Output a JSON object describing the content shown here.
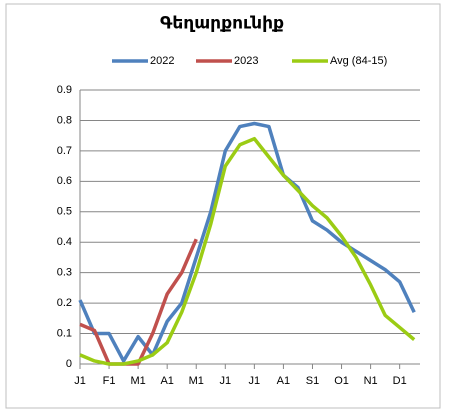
{
  "chart_data": {
    "type": "line",
    "title": "Գեղարքունիք",
    "x": [
      0,
      0.5,
      1,
      1.5,
      2,
      2.5,
      3,
      3.5,
      4,
      4.5,
      5,
      5.5,
      6,
      6.5,
      7,
      7.5,
      8,
      8.5,
      9,
      9.5,
      10,
      10.5,
      11,
      11.5
    ],
    "series": [
      {
        "name": "2022",
        "color": "#4f81bd",
        "values": [
          0.21,
          0.1,
          0.1,
          0.01,
          0.09,
          0.03,
          0.14,
          0.2,
          0.35,
          0.5,
          0.7,
          0.78,
          0.79,
          0.78,
          0.62,
          0.58,
          0.47,
          0.44,
          0.4,
          0.37,
          0.34,
          0.31,
          0.27,
          0.17
        ]
      },
      {
        "name": "2023",
        "color": "#c0504d",
        "values": [
          0.13,
          0.11,
          0.0,
          0.0,
          0.0,
          0.1,
          0.23,
          0.3,
          0.41,
          null,
          null,
          null,
          null,
          null,
          null,
          null,
          null,
          null,
          null,
          null,
          null,
          null,
          null,
          null
        ]
      },
      {
        "name": "Avg (84-15)",
        "color": "#9bcc14",
        "values": [
          0.03,
          0.01,
          0.0,
          0.0,
          0.01,
          0.03,
          0.07,
          0.17,
          0.3,
          0.46,
          0.65,
          0.72,
          0.74,
          0.68,
          0.62,
          0.57,
          0.52,
          0.48,
          0.42,
          0.35,
          0.26,
          0.16,
          0.12,
          0.08
        ]
      }
    ],
    "xlim": [
      0,
      11.7
    ],
    "xticks": [
      {
        "value": 0,
        "label": "J1"
      },
      {
        "value": 1,
        "label": "F1"
      },
      {
        "value": 2,
        "label": "M1"
      },
      {
        "value": 3,
        "label": "A1"
      },
      {
        "value": 4,
        "label": "M1"
      },
      {
        "value": 5,
        "label": "J1"
      },
      {
        "value": 6,
        "label": "J1"
      },
      {
        "value": 7,
        "label": "A1"
      },
      {
        "value": 8,
        "label": "S1"
      },
      {
        "value": 9,
        "label": "O1"
      },
      {
        "value": 10,
        "label": "N1"
      },
      {
        "value": 11,
        "label": "D1"
      }
    ],
    "ylim": [
      0,
      0.9
    ],
    "yticks": [
      0,
      0.1,
      0.2,
      0.3,
      0.4,
      0.5,
      0.6,
      0.7,
      0.8,
      0.9
    ],
    "grid": true,
    "legend": "top"
  }
}
